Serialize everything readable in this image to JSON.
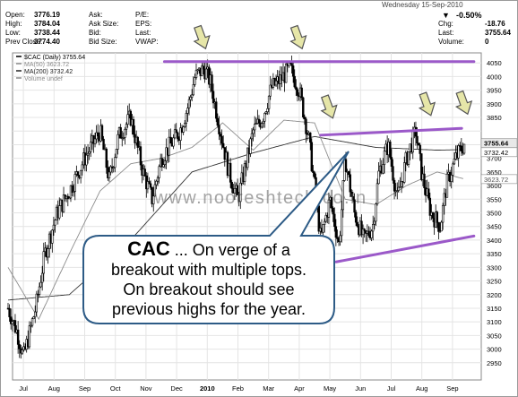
{
  "quote_table": {
    "col1": [
      {
        "label": "Open:",
        "value": "3776.19"
      },
      {
        "label": "High:",
        "value": "3784.04"
      },
      {
        "label": "Low:",
        "value": "3738.44"
      },
      {
        "label": "Prev Close:",
        "value": "3774.40"
      }
    ],
    "col2": [
      {
        "label": "Ask:",
        "value": ""
      },
      {
        "label": "Ask Size:",
        "value": ""
      },
      {
        "label": "Bid:",
        "value": ""
      },
      {
        "label": "Bid Size:",
        "value": ""
      }
    ],
    "col3": [
      {
        "label": "P/E:",
        "value": ""
      },
      {
        "label": "EPS:",
        "value": ""
      },
      {
        "label": "Last:",
        "value": ""
      },
      {
        "label": "VWAP:",
        "value": ""
      }
    ],
    "date_text": "Wednesday 15-Sep-2010",
    "change_pct": "-0.50%",
    "col4": [
      {
        "label": "Chg:",
        "value": "-18.76"
      },
      {
        "label": "Last:",
        "value": "3755.64"
      },
      {
        "label": "Volume:",
        "value": "0"
      }
    ]
  },
  "legend": [
    {
      "text": "$CAC (Daily) 3755.64",
      "color": "#000000"
    },
    {
      "text": "MA(50) 3623.72",
      "color": "#8a8a8a"
    },
    {
      "text": "MA(200) 3732.42",
      "color": "#222222"
    },
    {
      "text": "Volume undef",
      "color": "#8a8a8a"
    }
  ],
  "watermark": "www.nooreshtech.co.in",
  "callout": {
    "bold": "CAC",
    "line1_rest": " ... On verge of a",
    "line2": "breakout with multiple tops.",
    "line3": "On breakout should see",
    "line4": "previous highs for the year."
  },
  "price_badges": [
    {
      "text": "3755.64",
      "bg": "#e8e8e8",
      "fg": "#000000"
    },
    {
      "text": "3732.42",
      "bg": "#ffffff",
      "fg": "#000000"
    },
    {
      "text": "3623.72",
      "bg": "#ffffff",
      "fg": "#555555"
    }
  ],
  "colors": {
    "trendline": "#9b59c9",
    "candle": "#000000",
    "ma50": "#8c8c8c",
    "ma200": "#333333",
    "grid": "#e4e4e4",
    "callout_border": "#2d5b86",
    "arrow_fill": "#e6e6a8"
  },
  "chart_data": {
    "type": "candlestick",
    "title": "$CAC (Daily)",
    "ylim": [
      2900,
      4100
    ],
    "yticks": [
      2950,
      3000,
      3050,
      3100,
      3150,
      3200,
      3250,
      3300,
      3350,
      3400,
      3450,
      3500,
      3550,
      3600,
      3650,
      3700,
      3750,
      3800,
      3850,
      3900,
      3950,
      4000,
      4050
    ],
    "ytick_labels": [
      "2950",
      "3000",
      "3050",
      "3100",
      "3150",
      "3200",
      "3250",
      "3300",
      "3350",
      "3400",
      "3450",
      "3500",
      "3550",
      "3600",
      "3650",
      "3700",
      "",
      "",
      "3850",
      "3900",
      "3950",
      "4000",
      "4050"
    ],
    "xlabels": [
      "Jul",
      "Aug",
      "Sep",
      "Oct",
      "Nov",
      "Dec",
      "2010",
      "Feb",
      "Mar",
      "Apr",
      "May",
      "Jun",
      "Jul",
      "Aug",
      "Sep"
    ],
    "x_positions_months": [
      0.5,
      1.5,
      2.5,
      3.5,
      4.5,
      5.5,
      6.5,
      7.5,
      8.5,
      9.5,
      10.5,
      11.5,
      12.5,
      13.5,
      14.5
    ],
    "close_path_anchors": [
      [
        0.0,
        3150
      ],
      [
        0.3,
        3060
      ],
      [
        0.5,
        2970
      ],
      [
        0.9,
        3150
      ],
      [
        1.2,
        3350
      ],
      [
        1.6,
        3500
      ],
      [
        2.0,
        3580
      ],
      [
        2.5,
        3700
      ],
      [
        3.0,
        3800
      ],
      [
        3.3,
        3620
      ],
      [
        3.6,
        3780
      ],
      [
        4.0,
        3850
      ],
      [
        4.4,
        3650
      ],
      [
        4.7,
        3550
      ],
      [
        5.0,
        3700
      ],
      [
        5.3,
        3750
      ],
      [
        5.6,
        3800
      ],
      [
        5.9,
        3900
      ],
      [
        6.1,
        4000
      ],
      [
        6.4,
        4030
      ],
      [
        6.6,
        3980
      ],
      [
        6.8,
        3870
      ],
      [
        7.2,
        3650
      ],
      [
        7.5,
        3550
      ],
      [
        7.8,
        3700
      ],
      [
        8.0,
        3800
      ],
      [
        8.3,
        3850
      ],
      [
        8.6,
        3960
      ],
      [
        8.9,
        3990
      ],
      [
        9.2,
        4030
      ],
      [
        9.5,
        3950
      ],
      [
        9.8,
        3780
      ],
      [
        10.0,
        3600
      ],
      [
        10.2,
        3400
      ],
      [
        10.5,
        3550
      ],
      [
        10.8,
        3380
      ],
      [
        11.0,
        3700
      ],
      [
        11.3,
        3500
      ],
      [
        11.6,
        3400
      ],
      [
        11.9,
        3450
      ],
      [
        12.1,
        3650
      ],
      [
        12.4,
        3750
      ],
      [
        12.7,
        3550
      ],
      [
        13.0,
        3700
      ],
      [
        13.3,
        3800
      ],
      [
        13.5,
        3640
      ],
      [
        13.8,
        3500
      ],
      [
        14.1,
        3450
      ],
      [
        14.3,
        3600
      ],
      [
        14.6,
        3700
      ],
      [
        14.9,
        3756
      ]
    ],
    "ma50_anchors": [
      [
        0.0,
        3300
      ],
      [
        1.0,
        3110
      ],
      [
        2.0,
        3350
      ],
      [
        3.0,
        3580
      ],
      [
        4.0,
        3680
      ],
      [
        5.0,
        3700
      ],
      [
        6.0,
        3740
      ],
      [
        7.0,
        3830
      ],
      [
        8.0,
        3730
      ],
      [
        9.0,
        3840
      ],
      [
        10.0,
        3830
      ],
      [
        11.0,
        3550
      ],
      [
        12.0,
        3530
      ],
      [
        13.0,
        3600
      ],
      [
        14.0,
        3650
      ],
      [
        14.9,
        3624
      ]
    ],
    "ma200_anchors": [
      [
        0.0,
        3180
      ],
      [
        2.0,
        3200
      ],
      [
        4.0,
        3400
      ],
      [
        6.0,
        3650
      ],
      [
        8.0,
        3720
      ],
      [
        10.0,
        3780
      ],
      [
        12.0,
        3740
      ],
      [
        14.0,
        3730
      ],
      [
        14.9,
        3732
      ]
    ],
    "trendlines": [
      {
        "name": "upper-horizontal",
        "from": [
          5.1,
          4055
        ],
        "to": [
          15.2,
          4055
        ]
      },
      {
        "name": "resistance",
        "from": [
          10.2,
          3785
        ],
        "to": [
          14.8,
          3810
        ]
      },
      {
        "name": "support",
        "from": [
          10.7,
          3320
        ],
        "to": [
          15.2,
          3415
        ]
      }
    ],
    "arrows_at": [
      [
        6.2,
        4075
      ],
      [
        9.35,
        4075
      ],
      [
        10.35,
        3820
      ],
      [
        13.55,
        3830
      ],
      [
        14.75,
        3835
      ]
    ],
    "grid": true
  }
}
